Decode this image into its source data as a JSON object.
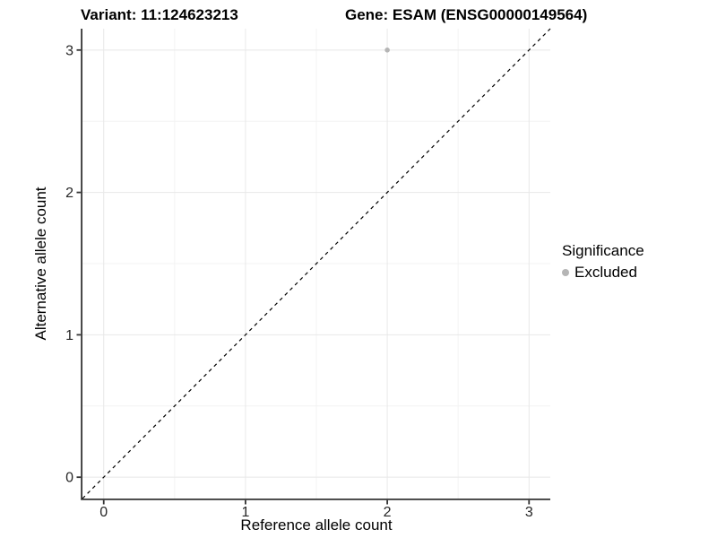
{
  "titles": {
    "variant": "Variant: 11:124623213",
    "gene": "Gene: ESAM (ENSG00000149564)"
  },
  "legend": {
    "title": "Significance",
    "items": [
      {
        "label": "Excluded",
        "color": "#b5b5b5"
      }
    ]
  },
  "colors": {
    "background": "#ffffff",
    "grid_major": "#e8e8e8",
    "grid_minor": "#f3f3f3",
    "axis_line": "#333333",
    "tick_text": "#262626",
    "point": "#b5b5b5",
    "reference_line": "#000000"
  },
  "chart_data": {
    "type": "scatter",
    "title": "Variant: 11:124623213  |  Gene: ESAM (ENSG00000149564)",
    "xlabel": "Reference allele count",
    "ylabel": "Alternative allele count",
    "xlim": [
      -0.15,
      3.15
    ],
    "ylim": [
      -0.15,
      3.15
    ],
    "x_ticks": [
      0,
      1,
      2,
      3
    ],
    "y_ticks": [
      0,
      1,
      2,
      3
    ],
    "x_tick_labels": [
      "0",
      "1",
      "2",
      "3"
    ],
    "y_tick_labels": [
      "0",
      "1",
      "2",
      "3"
    ],
    "x_minor_ticks": [
      0.5,
      1.5,
      2.5
    ],
    "y_minor_ticks": [
      0.5,
      1.5,
      2.5
    ],
    "grid": true,
    "legend_position": "right",
    "series": [
      {
        "name": "Excluded",
        "color": "#b5b5b5",
        "points": [
          {
            "x": 2,
            "y": 3
          }
        ]
      }
    ],
    "reference_line": {
      "type": "identity",
      "equation": "y = x",
      "style": "dashed",
      "color": "#000000"
    }
  }
}
